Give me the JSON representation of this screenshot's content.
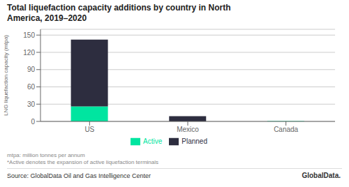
{
  "chart_data": {
    "type": "bar",
    "title": "Total liquefaction capacity additions by country in North\nAmerica, 2019–2020",
    "ylabel": "LNG liquefaction capacity (mtpa)",
    "categories": [
      "US",
      "Mexico",
      "Canada"
    ],
    "series": [
      {
        "name": "Active",
        "color": "#00E5A0",
        "values": [
          26,
          0,
          0.5
        ]
      },
      {
        "name": "Planned",
        "color": "#2D2D3F",
        "values": [
          116,
          9,
          0
        ]
      }
    ],
    "stacked": true,
    "ylim": [
      0,
      160
    ],
    "yticks": [
      0,
      30,
      60,
      90,
      120,
      150
    ],
    "grid": true,
    "legend": "bottom",
    "annotations": [
      "mtpa: million tonnes per annum",
      "*Active denotes the expansion of active liquefaction terminals",
      "Source: GlobalData Oil and Gas Intelligence Center",
      "GlobalData."
    ]
  }
}
